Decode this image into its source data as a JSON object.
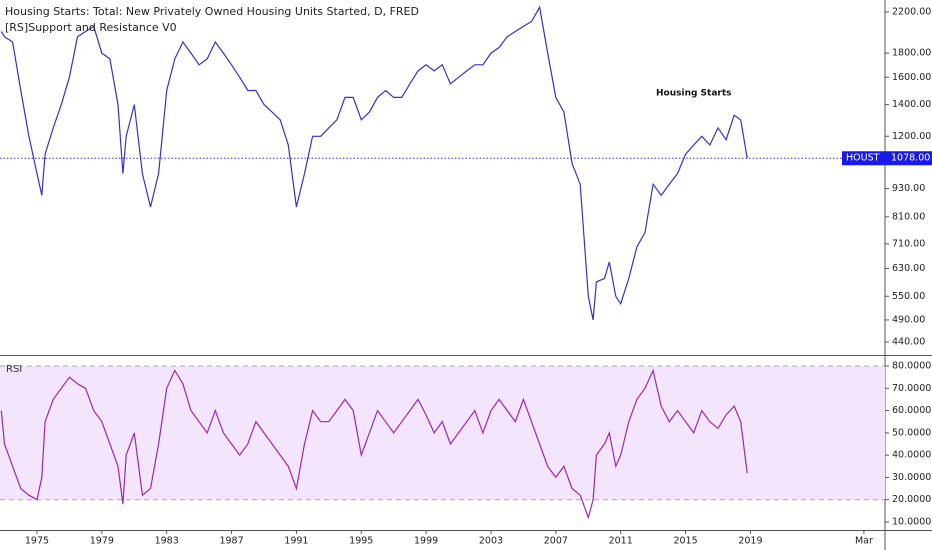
{
  "chart_data": [
    {
      "type": "line",
      "title": "Housing Starts: Total: New Privately Owned Housing Units Started, D, FRED",
      "subtitle": "[RS]Support and Resistance V0",
      "annotation": "Housing Starts",
      "log": true,
      "color": "#3232c8",
      "x": [
        1972.8,
        1973,
        1973.5,
        1974,
        1974.5,
        1975,
        1975.3,
        1975.5,
        1976,
        1976.5,
        1977,
        1977.5,
        1978,
        1978.5,
        1979,
        1979.5,
        1980,
        1980.3,
        1980.5,
        1981,
        1981.5,
        1982,
        1982.5,
        1983,
        1983.5,
        1984,
        1984.5,
        1985,
        1985.5,
        1986,
        1986.5,
        1987,
        1987.5,
        1988,
        1988.5,
        1989,
        1989.5,
        1990,
        1990.5,
        1991,
        1991.5,
        1992,
        1992.5,
        1993,
        1993.5,
        1994,
        1994.5,
        1995,
        1995.5,
        1996,
        1996.5,
        1997,
        1997.5,
        1998,
        1998.5,
        1999,
        1999.5,
        2000,
        2000.5,
        2001,
        2001.5,
        2002,
        2002.5,
        2003,
        2003.5,
        2004,
        2004.5,
        2005,
        2005.5,
        2006,
        2006.5,
        2007,
        2007.5,
        2008,
        2008.5,
        2009,
        2009.3,
        2009.5,
        2010,
        2010.3,
        2010.7,
        2011,
        2011.5,
        2012,
        2012.5,
        2013,
        2013.5,
        2014,
        2014.5,
        2015,
        2015.5,
        2016,
        2016.5,
        2017,
        2017.5,
        2018,
        2018.4,
        2018.8
      ],
      "values": [
        2000,
        1950,
        1900,
        1500,
        1200,
        1000,
        900,
        1100,
        1250,
        1400,
        1600,
        1950,
        2000,
        2050,
        1800,
        1750,
        1400,
        1000,
        1200,
        1400,
        1000,
        850,
        1000,
        1500,
        1750,
        1900,
        1800,
        1700,
        1750,
        1900,
        1800,
        1700,
        1600,
        1500,
        1500,
        1400,
        1350,
        1300,
        1150,
        850,
        1000,
        1200,
        1200,
        1250,
        1300,
        1450,
        1450,
        1300,
        1350,
        1450,
        1500,
        1450,
        1450,
        1550,
        1650,
        1700,
        1650,
        1700,
        1550,
        1600,
        1650,
        1700,
        1700,
        1800,
        1850,
        1950,
        2000,
        2050,
        2100,
        2250,
        1800,
        1450,
        1350,
        1050,
        950,
        550,
        490,
        590,
        600,
        650,
        550,
        530,
        600,
        700,
        750,
        950,
        900,
        950,
        1000,
        1100,
        1150,
        1200,
        1150,
        1250,
        1180,
        1330,
        1300,
        1078
      ],
      "last": {
        "name": "HOUST",
        "value": 1078,
        "label": "1078.00"
      },
      "xlim": [
        1972.72,
        2027.3
      ],
      "xticks": [
        1975,
        1979,
        1983,
        1987,
        1991,
        1995,
        1999,
        2003,
        2007,
        2011,
        2015,
        2019,
        {
          "value": 2026,
          "label": "Mar"
        }
      ],
      "ylim": [
        413,
        2332
      ],
      "yticks": [
        {
          "value": 440,
          "label": "440.00"
        },
        {
          "value": 490,
          "label": "490.00"
        },
        {
          "value": 550,
          "label": "550.00"
        },
        {
          "value": 630,
          "label": "630.00"
        },
        {
          "value": 710,
          "label": "710.00"
        },
        {
          "value": 810,
          "label": "810.00"
        },
        {
          "value": 930,
          "label": "930.00"
        },
        {
          "value": 1200,
          "label": "1200.00"
        },
        {
          "value": 1400,
          "label": "1400.00"
        },
        {
          "value": 1600,
          "label": "1600.00"
        },
        {
          "value": 1800,
          "label": "1800.00"
        },
        {
          "value": 2200,
          "label": "2200.00"
        }
      ]
    },
    {
      "type": "line",
      "title": "RSI",
      "color": "#9c27b0",
      "bands": [
        20,
        80
      ],
      "x": [
        1972.8,
        1973,
        1973.5,
        1974,
        1974.5,
        1975,
        1975.3,
        1975.5,
        1976,
        1976.5,
        1977,
        1977.5,
        1978,
        1978.5,
        1979,
        1979.5,
        1980,
        1980.3,
        1980.5,
        1981,
        1981.5,
        1982,
        1982.5,
        1983,
        1983.5,
        1984,
        1984.5,
        1985,
        1985.5,
        1986,
        1986.5,
        1987,
        1987.5,
        1988,
        1988.5,
        1989,
        1989.5,
        1990,
        1990.5,
        1991,
        1991.5,
        1992,
        1992.5,
        1993,
        1993.5,
        1994,
        1994.5,
        1995,
        1995.5,
        1996,
        1996.5,
        1997,
        1997.5,
        1998,
        1998.5,
        1999,
        1999.5,
        2000,
        2000.5,
        2001,
        2001.5,
        2002,
        2002.5,
        2003,
        2003.5,
        2004,
        2004.5,
        2005,
        2005.5,
        2006,
        2006.5,
        2007,
        2007.5,
        2008,
        2008.5,
        2009,
        2009.3,
        2009.5,
        2010,
        2010.3,
        2010.7,
        2011,
        2011.5,
        2012,
        2012.5,
        2013,
        2013.5,
        2014,
        2014.5,
        2015,
        2015.5,
        2016,
        2016.5,
        2017,
        2017.5,
        2018,
        2018.4,
        2018.8
      ],
      "values": [
        60,
        45,
        35,
        25,
        22,
        20,
        30,
        55,
        65,
        70,
        75,
        72,
        70,
        60,
        55,
        45,
        35,
        18,
        40,
        50,
        22,
        25,
        45,
        70,
        78,
        72,
        60,
        55,
        50,
        60,
        50,
        45,
        40,
        45,
        55,
        50,
        45,
        40,
        35,
        25,
        45,
        60,
        55,
        55,
        60,
        65,
        60,
        40,
        50,
        60,
        55,
        50,
        55,
        60,
        65,
        58,
        50,
        55,
        45,
        50,
        55,
        60,
        50,
        60,
        65,
        60,
        55,
        65,
        55,
        45,
        35,
        30,
        35,
        25,
        22,
        12,
        20,
        40,
        45,
        50,
        35,
        40,
        55,
        65,
        70,
        78,
        62,
        55,
        60,
        55,
        50,
        60,
        55,
        52,
        58,
        62,
        55,
        32
      ],
      "xlim": [
        1972.72,
        2027.3
      ],
      "ylim": [
        6.4,
        84.5
      ],
      "yticks": [
        {
          "value": 10,
          "label": "10.0000"
        },
        {
          "value": 20,
          "label": "20.0000"
        },
        {
          "value": 30,
          "label": "30.0000"
        },
        {
          "value": 40,
          "label": "40.0000"
        },
        {
          "value": 50,
          "label": "50.0000"
        },
        {
          "value": 60,
          "label": "60.0000"
        },
        {
          "value": 70,
          "label": "70.0000"
        },
        {
          "value": 80,
          "label": "80.0000"
        }
      ]
    }
  ]
}
